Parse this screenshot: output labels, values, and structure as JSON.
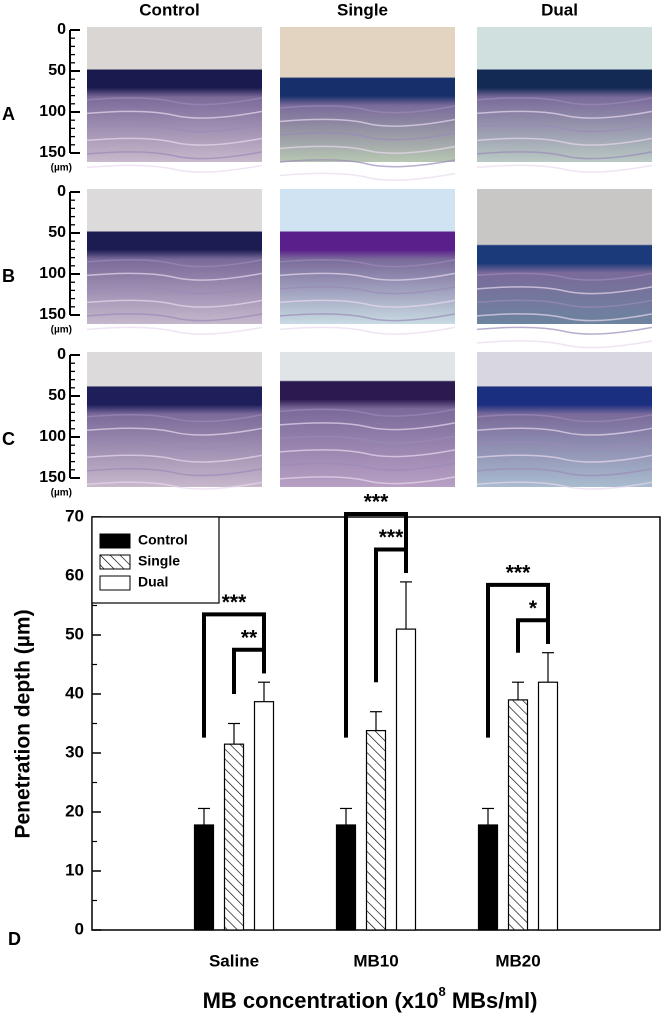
{
  "images": {
    "columns": [
      "Control",
      "Single",
      "Dual"
    ],
    "rows": [
      "A",
      "B",
      "C"
    ],
    "scale_ticks": [
      0,
      50,
      100,
      150
    ],
    "scale_unit": "(µm)"
  },
  "chart_data": {
    "type": "bar",
    "panel_label": "D",
    "ylabel": "Penetration depth (µm)",
    "xlabel": [
      "MB concentration (x10",
      "8",
      " MBs/ml)"
    ],
    "categories": [
      "Saline",
      "MB10",
      "MB20"
    ],
    "series": [
      {
        "name": "Control",
        "color": "#000000",
        "hatch": false,
        "values": [
          17.8,
          17.8,
          17.8
        ],
        "errors": [
          2.8,
          2.8,
          2.8
        ]
      },
      {
        "name": "Single",
        "color": "#ffffff",
        "hatch": true,
        "values": [
          31.5,
          33.8,
          39
        ],
        "errors": [
          3.5,
          3.2,
          3
        ]
      },
      {
        "name": "Dual",
        "color": "#ffffff",
        "hatch": false,
        "values": [
          38.7,
          51,
          42
        ],
        "errors": [
          3.3,
          8,
          5
        ]
      }
    ],
    "significance": [
      {
        "category": 0,
        "pair": [
          0,
          2
        ],
        "label": "***"
      },
      {
        "category": 0,
        "pair": [
          1,
          2
        ],
        "label": "**"
      },
      {
        "category": 1,
        "pair": [
          0,
          2
        ],
        "label": "***"
      },
      {
        "category": 1,
        "pair": [
          1,
          2
        ],
        "label": "***"
      },
      {
        "category": 2,
        "pair": [
          0,
          2
        ],
        "label": "***"
      },
      {
        "category": 2,
        "pair": [
          1,
          2
        ],
        "label": "*"
      }
    ],
    "ylim": [
      0,
      70
    ],
    "yticks": [
      0,
      10,
      20,
      30,
      40,
      50,
      60,
      70
    ],
    "legend": "upper left"
  }
}
